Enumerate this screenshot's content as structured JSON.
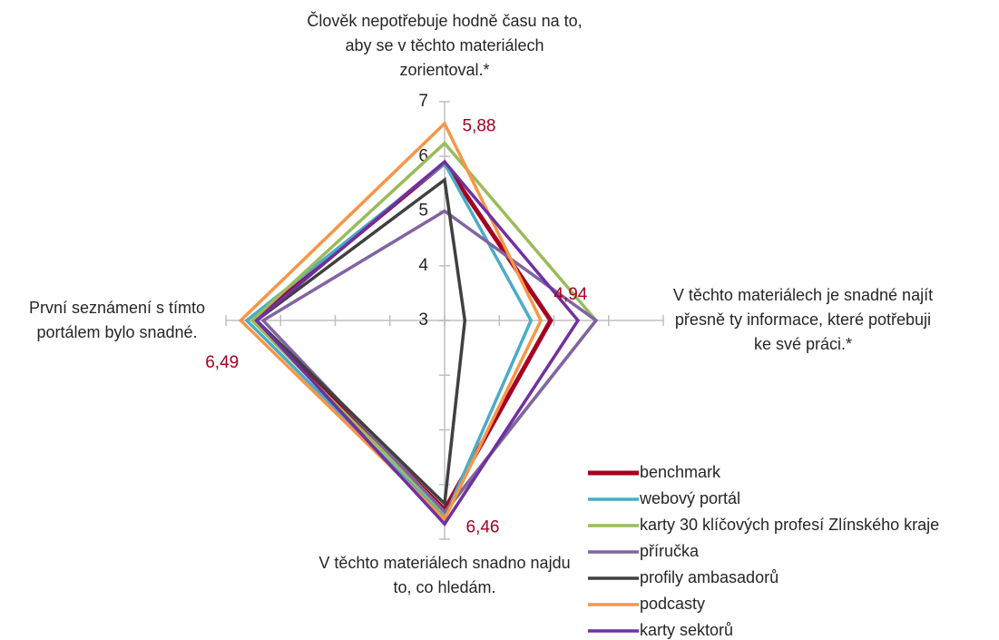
{
  "chart_data": {
    "type": "radar",
    "categories": [
      "Člověk nepotřebuje hodně času na to, aby se v těchto materiálech zorientoval.*",
      "V těchto materiálech je snadné najít přesně ty informace, které potřebuji ke své práci.*",
      "V těchto materiálech snadno najdu to, co hledám.",
      "První seznámení s tímto portálem bylo snadné."
    ],
    "rlim": [
      3,
      7
    ],
    "rticks": [
      3,
      4,
      5,
      6,
      7
    ],
    "series": [
      {
        "name": "benchmark",
        "color": "#a50021",
        "values": [
          5.88,
          4.94,
          6.46,
          6.49
        ],
        "value_labels": [
          "5,88",
          "4,94",
          "6,46",
          "6,49"
        ]
      },
      {
        "name": "webový portál",
        "color": "#4bacc6",
        "values": [
          5.87,
          4.58,
          6.6,
          6.62
        ]
      },
      {
        "name": "karty 30 klíčových profesí Zlínského kraje",
        "color": "#9bbb59",
        "values": [
          6.24,
          5.77,
          6.52,
          6.52
        ]
      },
      {
        "name": "příručka",
        "color": "#8064a2",
        "values": [
          5.0,
          5.77,
          6.5,
          6.32
        ]
      },
      {
        "name": "profily ambasadorů",
        "color": "#404040",
        "values": [
          5.57,
          3.37,
          6.35,
          6.44
        ]
      },
      {
        "name": "podcasty",
        "color": "#f79646",
        "values": [
          6.6,
          4.76,
          6.63,
          6.73
        ]
      },
      {
        "name": "karty sektorů",
        "color": "#7030a0",
        "values": [
          5.9,
          5.44,
          6.72,
          6.44
        ]
      }
    ]
  }
}
